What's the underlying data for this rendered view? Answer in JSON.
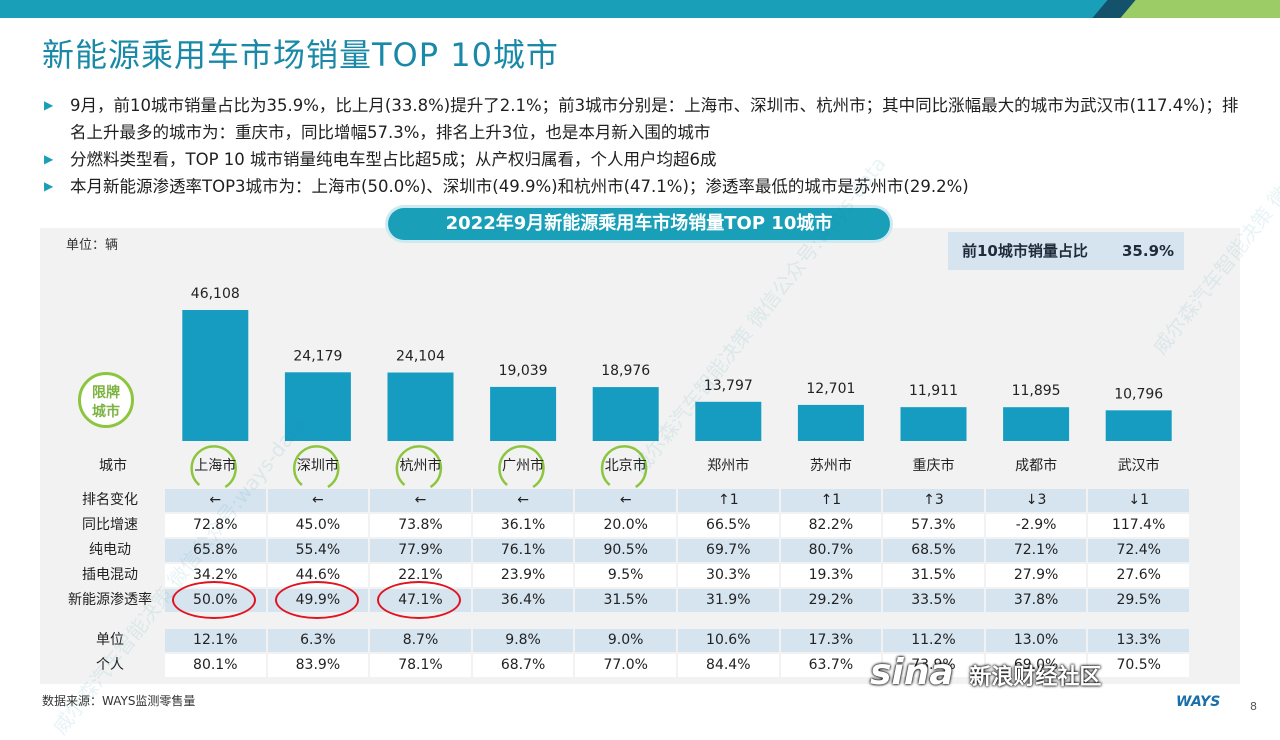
{
  "page": {
    "title": "新能源乘用车市场销量TOP 10城市",
    "bullets": [
      "9月，前10城市销量占比为35.9%，比上月(33.8%)提升了2.1%；前3城市分别是：上海市、深圳市、杭州市；其中同比涨幅最大的城市为武汉市(117.4%)；排名上升最多的城市为：重庆市，同比增幅57.3%，排名上升3位，也是本月新入围的城市",
      "分燃料类型看，TOP 10 城市销量纯电车型占比超5成；从产权归属看，个人用户均超6成",
      "本月新能源渗透率TOP3城市为：上海市(50.0%)、深圳市(49.9%)和杭州市(47.1%)；渗透率最低的城市是苏州市(29.2%)"
    ],
    "banner": "2022年9月新能源乘用车市场销量TOP 10城市",
    "unit": "单位：辆",
    "share_label": "前10城市销量占比",
    "share_value": "35.9%",
    "badge": [
      "限牌",
      "城市"
    ],
    "source": "数据来源：WAYS监测零售量",
    "page_number": "8",
    "logo": "WAYS",
    "watermark": "威尔森汽车智能决策 微信公众号:ways-data",
    "sina": {
      "logo": "sina",
      "text": "新浪财经社区"
    }
  },
  "colors": {
    "bar": "#169cc0",
    "accent": "#1a9fb8",
    "ring": "#8cc63f",
    "highlight": "#e0141e"
  },
  "chart_data": {
    "type": "bar",
    "title": "2022年9月新能源乘用车市场销量TOP 10城市",
    "ylabel": "单位：辆",
    "categories_label": "城市",
    "categories": [
      "上海市",
      "深圳市",
      "杭州市",
      "广州市",
      "北京市",
      "郑州市",
      "苏州市",
      "重庆市",
      "成都市",
      "武汉市"
    ],
    "values": [
      46108,
      24179,
      24104,
      19039,
      18976,
      13797,
      12701,
      11911,
      11895,
      10796
    ],
    "value_labels": [
      "46,108",
      "24,179",
      "24,104",
      "19,039",
      "18,976",
      "13,797",
      "12,701",
      "11,911",
      "11,895",
      "10,796"
    ],
    "ylim": [
      0,
      50000
    ],
    "restricted_cities": [
      "上海市",
      "深圳市",
      "杭州市",
      "广州市",
      "北京市"
    ],
    "table": [
      {
        "label": "排名变化",
        "values": [
          "←",
          "←",
          "←",
          "←",
          "←",
          "↑1",
          "↑1",
          "↑3",
          "↓3",
          "↓1"
        ]
      },
      {
        "label": "同比增速",
        "values": [
          "72.8%",
          "45.0%",
          "73.8%",
          "36.1%",
          "20.0%",
          "66.5%",
          "82.2%",
          "57.3%",
          "-2.9%",
          "117.4%"
        ]
      },
      {
        "label": "纯电动",
        "values": [
          "65.8%",
          "55.4%",
          "77.9%",
          "76.1%",
          "90.5%",
          "69.7%",
          "80.7%",
          "68.5%",
          "72.1%",
          "72.4%"
        ]
      },
      {
        "label": "插电混动",
        "values": [
          "34.2%",
          "44.6%",
          "22.1%",
          "23.9%",
          "9.5%",
          "30.3%",
          "19.3%",
          "31.5%",
          "27.9%",
          "27.6%"
        ]
      },
      {
        "label": "新能源渗透率",
        "values": [
          "50.0%",
          "49.9%",
          "47.1%",
          "36.4%",
          "31.5%",
          "31.9%",
          "29.2%",
          "33.5%",
          "37.8%",
          "29.5%"
        ]
      },
      {
        "label": "单位",
        "values": [
          "12.1%",
          "6.3%",
          "8.7%",
          "9.8%",
          "9.0%",
          "10.6%",
          "17.3%",
          "11.2%",
          "13.0%",
          "13.3%"
        ]
      },
      {
        "label": "个人",
        "values": [
          "80.1%",
          "83.9%",
          "78.1%",
          "68.7%",
          "77.0%",
          "84.4%",
          "63.7%",
          "73.9%",
          "69.0%",
          "70.5%"
        ]
      }
    ],
    "highlighted_cells": {
      "row": "新能源渗透率",
      "categories": [
        "上海市",
        "深圳市",
        "杭州市"
      ]
    }
  }
}
